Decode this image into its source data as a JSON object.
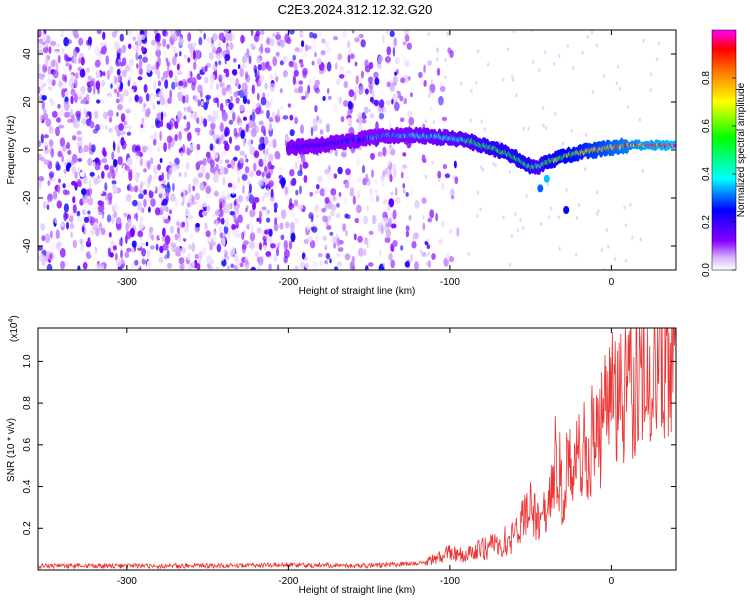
{
  "page": {
    "title": "C2E3.2024.312.12.32.G20"
  },
  "chart_data": [
    {
      "type": "heatmap",
      "title": "C2E3.2024.312.12.32.G20",
      "xlabel": "Height of straight line (km)",
      "ylabel": "Frequency (Hz)",
      "xlim": [
        -355,
        40
      ],
      "ylim": [
        -50,
        50
      ],
      "x_ticks": [
        -300,
        -200,
        -100,
        0
      ],
      "y_ticks": [
        -40,
        -20,
        0,
        20,
        40
      ],
      "grid": false,
      "colorbar": {
        "label": "Normalized spectral amplitude",
        "range": [
          0,
          1
        ],
        "ticks": [
          0.0,
          0.2,
          0.4,
          0.6,
          0.8
        ],
        "tick_labels": [
          "0.0",
          "0.2",
          "0.4",
          "0.6",
          "0.8"
        ],
        "colors": [
          "#ffffff",
          "#8800ff",
          "#0000ff",
          "#00ffff",
          "#00ff00",
          "#ffff00",
          "#ff7f00",
          "#ff0000",
          "#ff00ff"
        ]
      },
      "noise_region": {
        "x_start": -355,
        "x_end": -125,
        "amplitude": 0.2
      },
      "signal_track": {
        "x": [
          -200,
          -180,
          -160,
          -140,
          -120,
          -100,
          -90,
          -80,
          -70,
          -60,
          -50,
          -45,
          -40,
          -30,
          -20,
          -10,
          0,
          10,
          20,
          40
        ],
        "y": [
          1,
          2,
          4,
          6,
          6,
          5,
          4,
          2,
          0,
          -3,
          -7,
          -7,
          -5,
          -3,
          -1,
          0,
          1,
          2,
          2,
          2
        ],
        "amplitude": [
          0.2,
          0.25,
          0.3,
          0.35,
          0.4,
          0.45,
          0.5,
          0.55,
          0.6,
          0.62,
          0.6,
          0.5,
          0.65,
          0.7,
          0.75,
          0.8,
          0.85,
          0.9,
          0.95,
          1.0
        ]
      }
    },
    {
      "type": "line",
      "xlabel": "Height of straight line (km)",
      "ylabel": "SNR (10 * v/v)",
      "y_multiplier_label": "(x10",
      "y_multiplier_exp": "4",
      "y_multiplier_close": ")",
      "xlim": [
        -355,
        40
      ],
      "ylim": [
        0,
        1.16
      ],
      "x_ticks": [
        -300,
        -200,
        -100,
        0
      ],
      "y_ticks": [
        0.2,
        0.4,
        0.6,
        0.8,
        1.0
      ],
      "grid": false,
      "series": [
        {
          "color": "#ee3333",
          "x": [
            -355,
            -300,
            -250,
            -200,
            -150,
            -120,
            -110,
            -100,
            -90,
            -80,
            -70,
            -60,
            -55,
            -50,
            -45,
            -40,
            -35,
            -30,
            -27,
            -25,
            -20,
            -15,
            -10,
            -5,
            0,
            5,
            10,
            15,
            20,
            25,
            30,
            35,
            40
          ],
          "y": [
            0.02,
            0.02,
            0.02,
            0.025,
            0.02,
            0.03,
            0.05,
            0.08,
            0.07,
            0.1,
            0.12,
            0.16,
            0.25,
            0.3,
            0.22,
            0.3,
            0.45,
            0.35,
            0.55,
            0.4,
            0.55,
            0.6,
            0.62,
            0.7,
            0.8,
            0.88,
            0.92,
            0.98,
            1.02,
            1.07,
            1.1,
            1.12,
            1.13
          ]
        }
      ]
    }
  ]
}
